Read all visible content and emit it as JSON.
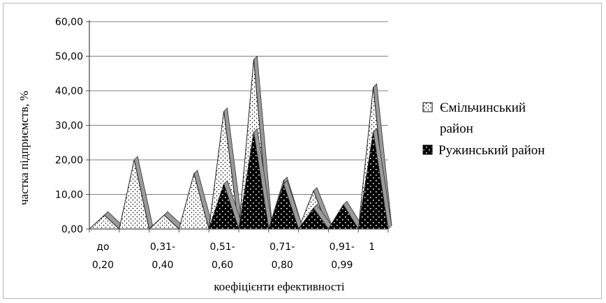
{
  "chart_data": {
    "type": "area",
    "title": "",
    "xlabel": "коефіцієнти ефективності",
    "ylabel": "частка підприємств, %",
    "ylim": [
      0,
      60
    ],
    "yticks": [
      "0,00",
      "10,00",
      "20,00",
      "30,00",
      "40,00",
      "50,00",
      "60,00"
    ],
    "grid": true,
    "legend_position": "right",
    "categories": [
      [
        "до",
        "0,20"
      ],
      [
        "",
        ""
      ],
      [
        "0,31-",
        "0,40"
      ],
      [
        "",
        ""
      ],
      [
        "0,51-",
        "0,60"
      ],
      [
        "",
        ""
      ],
      [
        "0,71-",
        "0,80"
      ],
      [
        "",
        ""
      ],
      [
        "0,91-",
        "0,99"
      ],
      [
        "1",
        ""
      ]
    ],
    "series": [
      {
        "name": "Ємільчинський район",
        "pattern": "dots",
        "values": [
          4,
          20,
          4,
          16,
          34,
          49,
          14,
          11,
          7,
          41
        ]
      },
      {
        "name": "Ружинський район",
        "pattern": "dark",
        "values": [
          0,
          0,
          0,
          0,
          13,
          28,
          13,
          6,
          7,
          28
        ]
      }
    ],
    "colors": {
      "dots_bg": "#ffffff",
      "dots_fg": "#000000",
      "dark_bg": "#000000",
      "dark_fg": "#ffffff",
      "grid": "#7f7f7f"
    }
  }
}
